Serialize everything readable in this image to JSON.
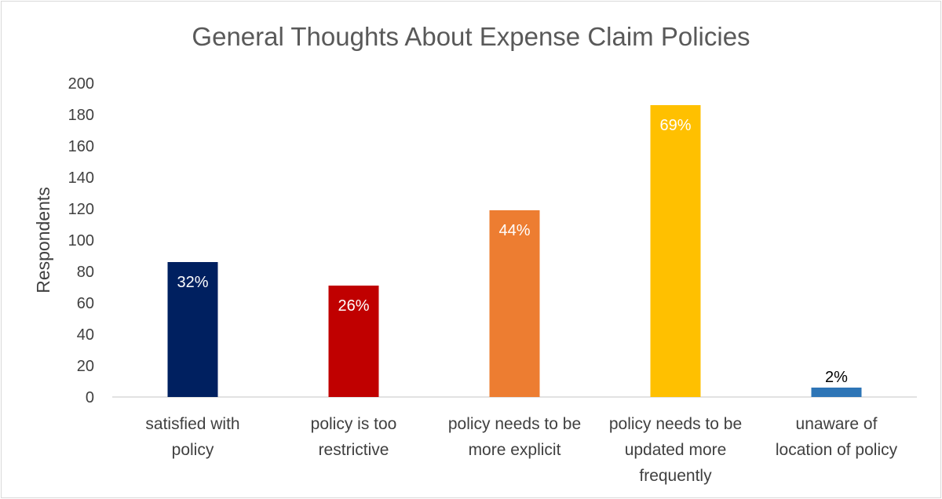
{
  "chart_data": {
    "type": "bar",
    "title": "General Thoughts About Expense Claim Policies",
    "ylabel": "Respondents",
    "xlabel": "",
    "ylim": [
      0,
      200
    ],
    "yticks": [
      0,
      20,
      40,
      60,
      80,
      100,
      120,
      140,
      160,
      180,
      200
    ],
    "grid": false,
    "legend": "none",
    "categories": [
      [
        "satisfied with",
        "policy"
      ],
      [
        "policy is too",
        "restrictive"
      ],
      [
        "policy needs to be",
        "more explicit"
      ],
      [
        "policy needs to be",
        "updated more",
        "frequently"
      ],
      [
        "unaware of",
        "location of policy"
      ]
    ],
    "values": [
      86,
      71,
      119,
      186,
      6
    ],
    "data_labels": [
      "32%",
      "26%",
      "44%",
      "69%",
      "2%"
    ],
    "colors": [
      "#002060",
      "#c00000",
      "#ed7d31",
      "#ffc000",
      "#2e75b6"
    ],
    "label_colors": [
      "#ffffff",
      "#ffffff",
      "#ffffff",
      "#ffffff",
      "#000000"
    ],
    "label_positions": [
      "inside-end",
      "inside-end",
      "inside-end",
      "inside-end",
      "outside-end"
    ]
  }
}
